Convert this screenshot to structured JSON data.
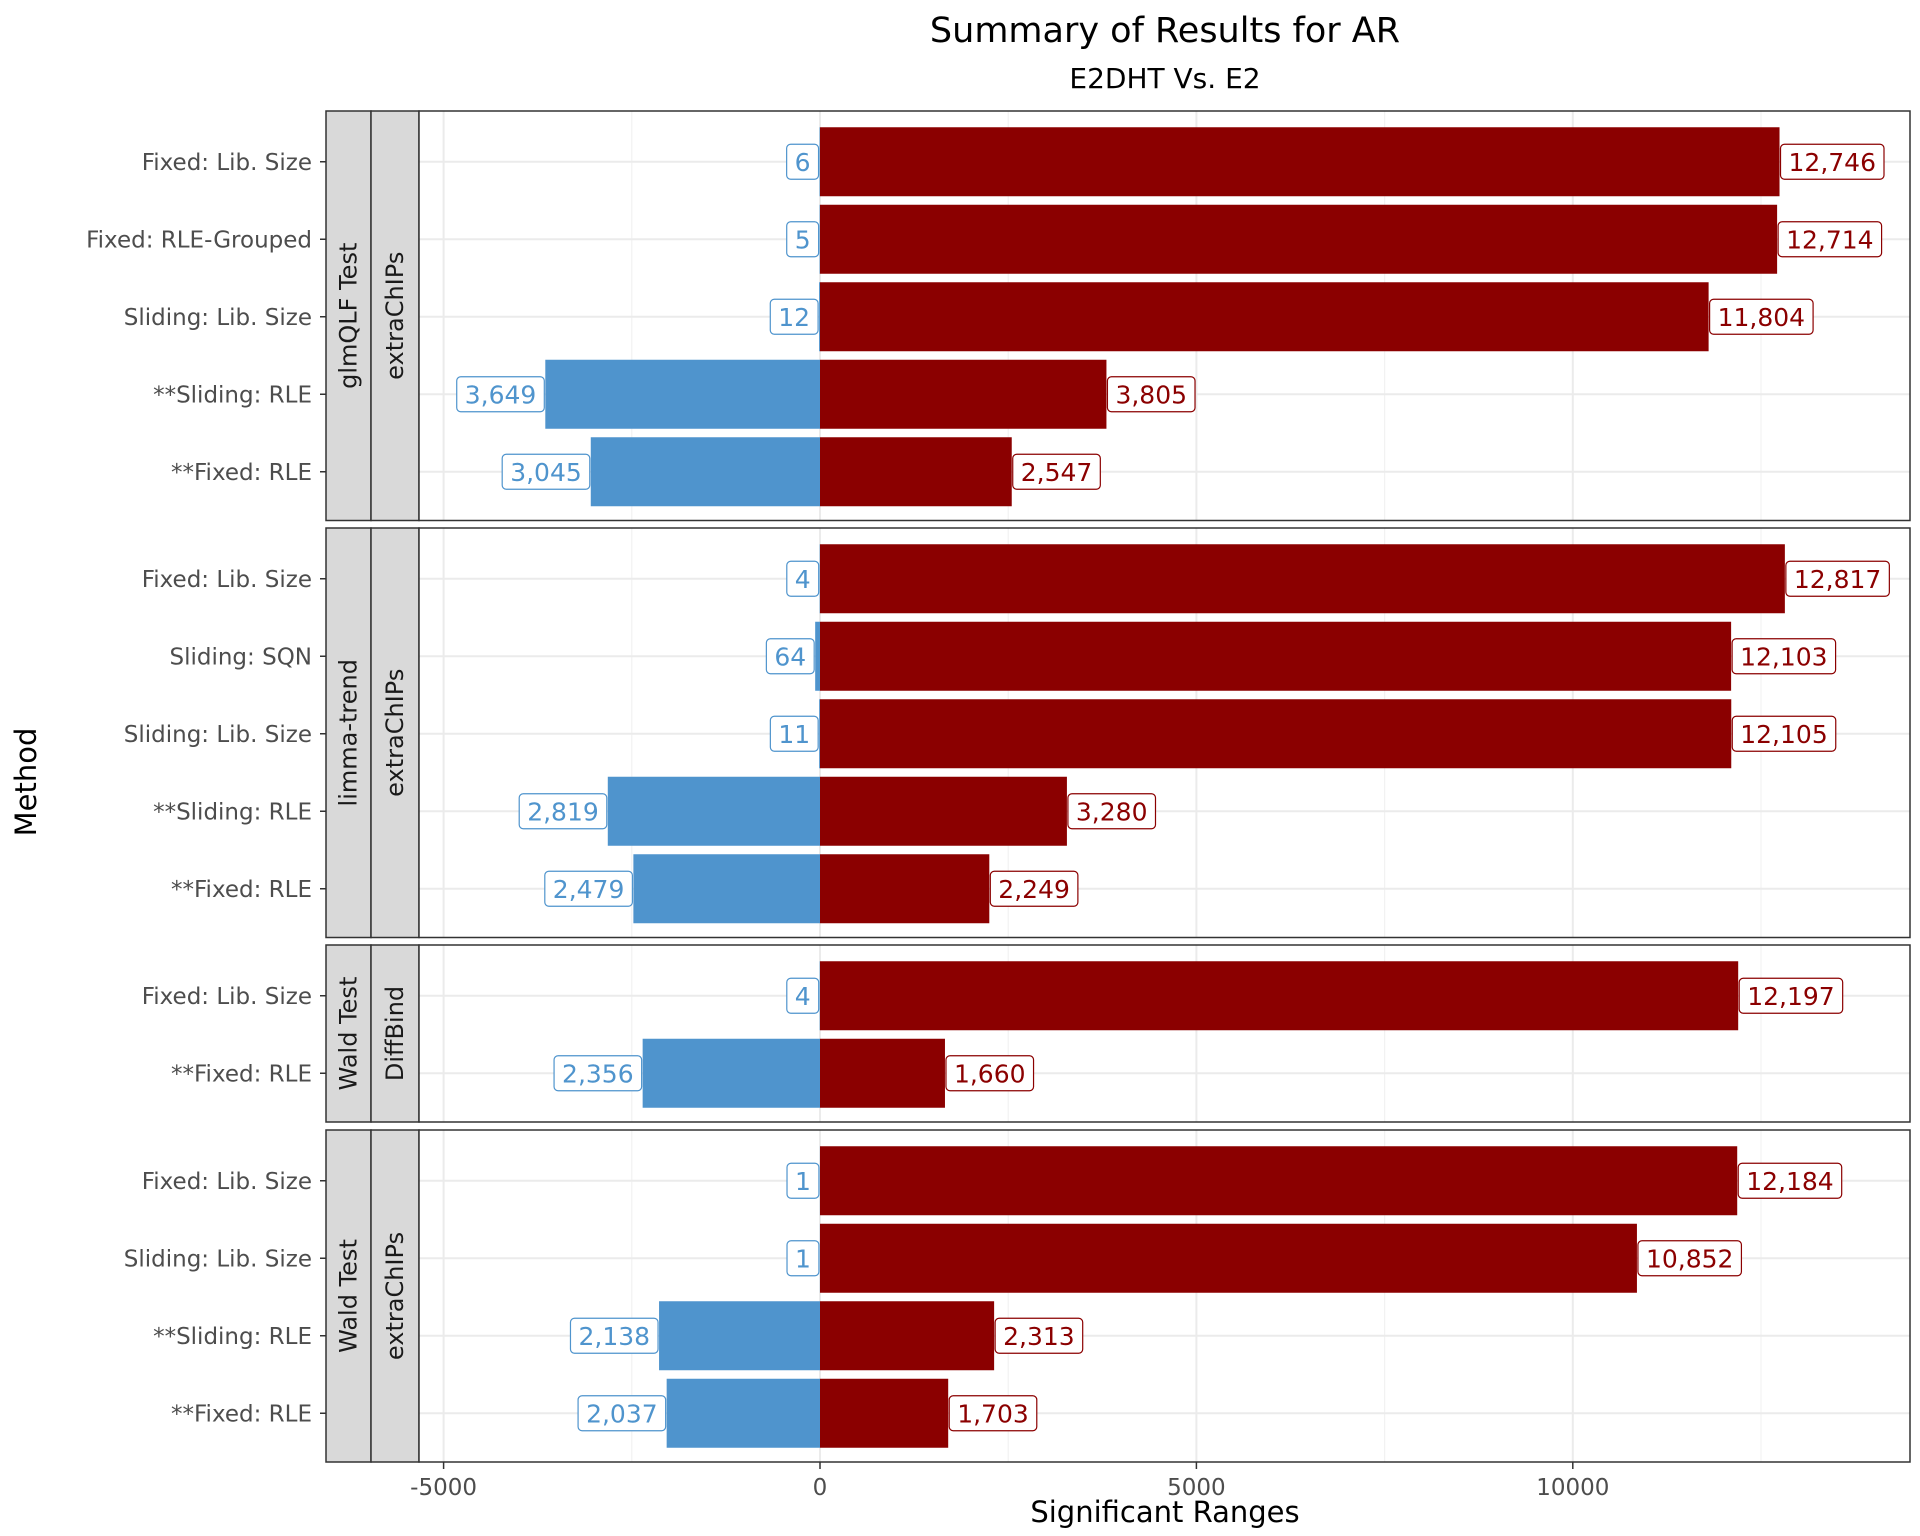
{
  "chart_data": {
    "type": "bar",
    "orientation": "horizontal",
    "title": "Summary of Results for AR",
    "subtitle": "E2DHT Vs. E2",
    "xlabel": "Significant Ranges",
    "ylabel": "Method",
    "xlim": [
      -6500,
      14000
    ],
    "x_ticks": [
      -5000,
      0,
      5000,
      10000
    ],
    "x_tick_labels": [
      "-5000",
      "0",
      "5000",
      "10000"
    ],
    "grid": true,
    "colors": {
      "up": "#8b0000",
      "down": "#4f94cd"
    },
    "panels": [
      {
        "test": "glmQLF Test",
        "package": "extraChIPs",
        "categories": [
          "Fixed: Lib. Size",
          "Fixed:  RLE-Grouped",
          "Sliding: Lib. Size",
          "**Sliding: RLE",
          "**Fixed: RLE"
        ],
        "up": [
          12746,
          12714,
          11804,
          3805,
          2547
        ],
        "down": [
          6,
          5,
          12,
          3649,
          3045
        ],
        "up_labels": [
          "12,746",
          "12,714",
          "11,804",
          "3,805",
          "2,547"
        ],
        "down_labels": [
          "6",
          "5",
          "12",
          "3,649",
          "3,045"
        ]
      },
      {
        "test": "limma-trend",
        "package": "extraChIPs",
        "categories": [
          "Fixed: Lib. Size",
          "Sliding: SQN",
          "Sliding: Lib. Size",
          "**Sliding: RLE",
          "**Fixed: RLE"
        ],
        "up": [
          12817,
          12103,
          12105,
          3280,
          2249
        ],
        "down": [
          4,
          64,
          11,
          2819,
          2479
        ],
        "up_labels": [
          "12,817",
          "12,103",
          "12,105",
          "3,280",
          "2,249"
        ],
        "down_labels": [
          "4",
          "64",
          "11",
          "2,819",
          "2,479"
        ]
      },
      {
        "test": "Wald Test",
        "package": "DiffBind",
        "categories": [
          "Fixed: Lib. Size",
          "**Fixed: RLE"
        ],
        "up": [
          12197,
          1660
        ],
        "down": [
          4,
          2356
        ],
        "up_labels": [
          "12,197",
          "1,660"
        ],
        "down_labels": [
          "4",
          "2,356"
        ]
      },
      {
        "test": "Wald Test",
        "package": "extraChIPs",
        "categories": [
          "Fixed: Lib. Size",
          "Sliding: Lib. Size",
          "**Sliding: RLE",
          "**Fixed: RLE"
        ],
        "up": [
          12184,
          10852,
          2313,
          1703
        ],
        "down": [
          1,
          1,
          2138,
          2037
        ],
        "up_labels": [
          "12,184",
          "10,852",
          "2,313",
          "1,703"
        ],
        "down_labels": [
          "1",
          "1",
          "2,138",
          "2,037"
        ]
      }
    ]
  }
}
